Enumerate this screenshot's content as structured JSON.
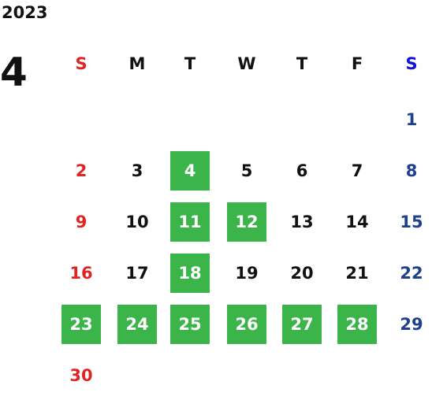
{
  "calendar": {
    "year": "2023",
    "month": "4",
    "weekdays": [
      "S",
      "M",
      "T",
      "W",
      "T",
      "F",
      "S"
    ],
    "colors": {
      "weekday": "#111111",
      "sunday": "#e02424",
      "saturday_header": "#1010d8",
      "saturday": "#1f3f8f",
      "highlight_fill": "#3bb54a",
      "highlight_text": "#ffffff"
    },
    "weeks": [
      [
        null,
        null,
        null,
        null,
        null,
        null,
        {
          "day": "1",
          "highlight": false
        }
      ],
      [
        {
          "day": "2",
          "highlight": false
        },
        {
          "day": "3",
          "highlight": false
        },
        {
          "day": "4",
          "highlight": true
        },
        {
          "day": "5",
          "highlight": false
        },
        {
          "day": "6",
          "highlight": false
        },
        {
          "day": "7",
          "highlight": false
        },
        {
          "day": "8",
          "highlight": false
        }
      ],
      [
        {
          "day": "9",
          "highlight": false
        },
        {
          "day": "10",
          "highlight": false
        },
        {
          "day": "11",
          "highlight": true
        },
        {
          "day": "12",
          "highlight": true
        },
        {
          "day": "13",
          "highlight": false
        },
        {
          "day": "14",
          "highlight": false
        },
        {
          "day": "15",
          "highlight": false
        }
      ],
      [
        {
          "day": "16",
          "highlight": false
        },
        {
          "day": "17",
          "highlight": false
        },
        {
          "day": "18",
          "highlight": true
        },
        {
          "day": "19",
          "highlight": false
        },
        {
          "day": "20",
          "highlight": false
        },
        {
          "day": "21",
          "highlight": false
        },
        {
          "day": "22",
          "highlight": false
        }
      ],
      [
        {
          "day": "23",
          "highlight": true
        },
        {
          "day": "24",
          "highlight": true
        },
        {
          "day": "25",
          "highlight": true
        },
        {
          "day": "26",
          "highlight": true
        },
        {
          "day": "27",
          "highlight": true
        },
        {
          "day": "28",
          "highlight": true
        },
        {
          "day": "29",
          "highlight": false
        }
      ],
      [
        {
          "day": "30",
          "highlight": false
        },
        null,
        null,
        null,
        null,
        null,
        null
      ]
    ]
  }
}
